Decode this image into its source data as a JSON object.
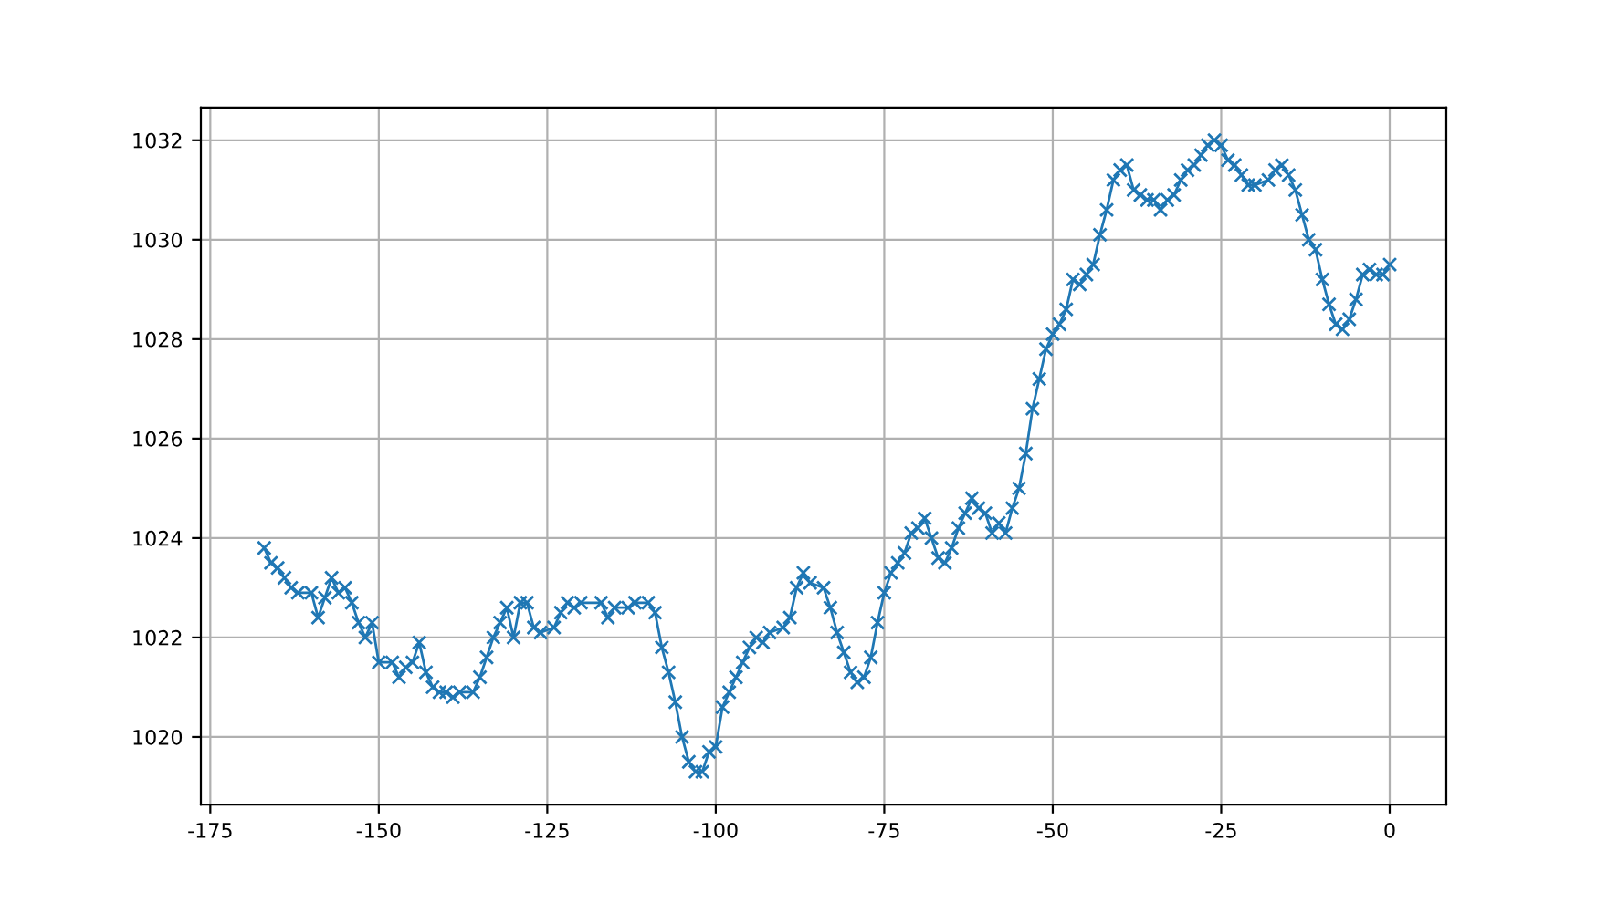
{
  "chart_data": {
    "type": "line",
    "x": [
      -167,
      -166,
      -165,
      -164,
      -163,
      -162,
      -160,
      -159,
      -158,
      -157,
      -156,
      -155,
      -154,
      -153,
      -152,
      -151,
      -150,
      -148,
      -147,
      -146,
      -145,
      -144,
      -143,
      -142,
      -141,
      -140,
      -139,
      -138,
      -136,
      -135,
      -134,
      -133,
      -132,
      -131,
      -130,
      -129,
      -128,
      -127,
      -126,
      -124,
      -123,
      -122,
      -121,
      -120,
      -117,
      -116,
      -115,
      -113,
      -112,
      -110,
      -109,
      -108,
      -107,
      -106,
      -105,
      -104,
      -103,
      -102,
      -101,
      -100,
      -99,
      -98,
      -97,
      -96,
      -95,
      -94,
      -93,
      -92,
      -90,
      -89,
      -88,
      -87,
      -86,
      -84,
      -83,
      -82,
      -81,
      -80,
      -79,
      -78,
      -77,
      -76,
      -75,
      -74,
      -73,
      -72,
      -71,
      -70,
      -69,
      -68,
      -67,
      -66,
      -65,
      -64,
      -63,
      -62,
      -61,
      -60,
      -59,
      -58,
      -57,
      -56,
      -55,
      -54,
      -53,
      -52,
      -51,
      -50,
      -49,
      -48,
      -47,
      -46,
      -45,
      -44,
      -43,
      -42,
      -41,
      -40,
      -39,
      -38,
      -37,
      -36,
      -35,
      -34,
      -33,
      -32,
      -31,
      -30,
      -29,
      -28,
      -27,
      -26,
      -25,
      -24,
      -23,
      -22,
      -21,
      -20,
      -18,
      -17,
      -16,
      -15,
      -14,
      -13,
      -12,
      -11,
      -10,
      -9,
      -8,
      -7,
      -6,
      -5,
      -4,
      -3,
      -2,
      -1,
      0
    ],
    "series": [
      {
        "color": "#1f77b4",
        "values": [
          1023.8,
          1023.5,
          1023.4,
          1023.2,
          1023.0,
          1022.9,
          1022.9,
          1022.4,
          1022.8,
          1023.2,
          1022.9,
          1023.0,
          1022.7,
          1022.3,
          1022.0,
          1022.3,
          1021.5,
          1021.5,
          1021.2,
          1021.4,
          1021.5,
          1021.9,
          1021.3,
          1021.0,
          1020.9,
          1020.9,
          1020.8,
          1020.9,
          1020.9,
          1021.2,
          1021.6,
          1022.0,
          1022.3,
          1022.6,
          1022.0,
          1022.7,
          1022.7,
          1022.2,
          1022.1,
          1022.2,
          1022.5,
          1022.7,
          1022.6,
          1022.7,
          1022.7,
          1022.4,
          1022.6,
          1022.6,
          1022.7,
          1022.7,
          1022.5,
          1021.8,
          1021.3,
          1020.7,
          1020.0,
          1019.5,
          1019.3,
          1019.3,
          1019.7,
          1019.8,
          1020.6,
          1020.9,
          1021.2,
          1021.5,
          1021.8,
          1022.0,
          1021.9,
          1022.1,
          1022.2,
          1022.4,
          1023.0,
          1023.3,
          1023.1,
          1023.0,
          1022.6,
          1022.1,
          1021.7,
          1021.3,
          1021.1,
          1021.2,
          1021.6,
          1022.3,
          1022.9,
          1023.3,
          1023.5,
          1023.7,
          1024.1,
          1024.2,
          1024.4,
          1024.0,
          1023.6,
          1023.5,
          1023.8,
          1024.2,
          1024.5,
          1024.8,
          1024.6,
          1024.5,
          1024.1,
          1024.3,
          1024.1,
          1024.6,
          1025.0,
          1025.7,
          1026.6,
          1027.2,
          1027.8,
          1028.1,
          1028.3,
          1028.6,
          1029.2,
          1029.1,
          1029.3,
          1029.5,
          1030.1,
          1030.6,
          1031.2,
          1031.4,
          1031.5,
          1031.0,
          1030.9,
          1030.8,
          1030.8,
          1030.6,
          1030.8,
          1030.9,
          1031.2,
          1031.4,
          1031.5,
          1031.7,
          1031.9,
          1032.0,
          1031.9,
          1031.6,
          1031.5,
          1031.3,
          1031.1,
          1031.1,
          1031.2,
          1031.4,
          1031.5,
          1031.3,
          1031.0,
          1030.5,
          1030.0,
          1029.8,
          1029.2,
          1028.7,
          1028.3,
          1028.2,
          1028.4,
          1028.8,
          1029.3,
          1029.4,
          1029.3,
          1029.3,
          1029.5
        ]
      }
    ],
    "xlim": [
      -176.4,
      8.4
    ],
    "xticks": [
      -175,
      -150,
      -125,
      -100,
      -75,
      -50,
      -25,
      0
    ],
    "ylim": [
      1018.64,
      1032.66
    ],
    "yticks": [
      1020,
      1022,
      1024,
      1026,
      1028,
      1030,
      1032
    ],
    "grid": true,
    "marker": "cross",
    "line_style": "solid"
  }
}
